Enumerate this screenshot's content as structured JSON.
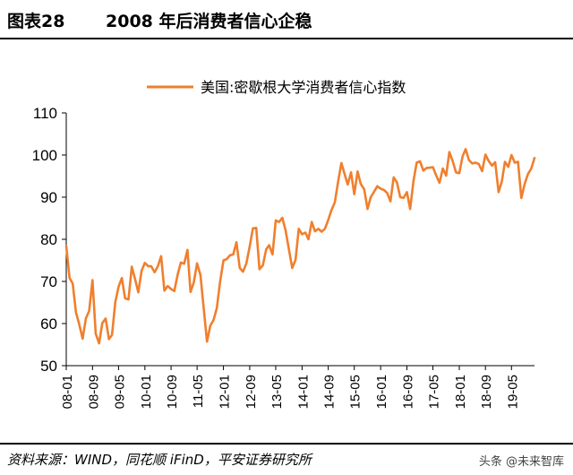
{
  "header": {
    "figure_label": "图表28",
    "title": "2008 年后消费者信心企稳"
  },
  "footer": {
    "source": "资料来源：WIND，同花顺 iFinD，平安证券研究所",
    "watermark": "头条 @未来智库"
  },
  "colors": {
    "series": "#F07F2E",
    "axis": "#000000"
  },
  "chart_data": {
    "type": "line",
    "title": "",
    "xlabel": "",
    "ylabel": "",
    "ylim": [
      50,
      110
    ],
    "yticks": [
      50,
      60,
      70,
      80,
      90,
      100,
      110
    ],
    "xticks": [
      "08-01",
      "08-09",
      "09-05",
      "10-01",
      "10-09",
      "11-05",
      "12-01",
      "12-09",
      "13-05",
      "14-01",
      "14-09",
      "15-05",
      "16-01",
      "16-09",
      "17-05",
      "18-01",
      "18-09",
      "19-05"
    ],
    "grid": false,
    "legend": "top-center",
    "series": [
      {
        "name": "美国:密歇根大学消费者信心指数",
        "x": [
          "2008-01",
          "2008-02",
          "2008-03",
          "2008-04",
          "2008-05",
          "2008-06",
          "2008-07",
          "2008-08",
          "2008-09",
          "2008-10",
          "2008-11",
          "2008-12",
          "2009-01",
          "2009-02",
          "2009-03",
          "2009-04",
          "2009-05",
          "2009-06",
          "2009-07",
          "2009-08",
          "2009-09",
          "2009-10",
          "2009-11",
          "2009-12",
          "2010-01",
          "2010-02",
          "2010-03",
          "2010-04",
          "2010-05",
          "2010-06",
          "2010-07",
          "2010-08",
          "2010-09",
          "2010-10",
          "2010-11",
          "2010-12",
          "2011-01",
          "2011-02",
          "2011-03",
          "2011-04",
          "2011-05",
          "2011-06",
          "2011-07",
          "2011-08",
          "2011-09",
          "2011-10",
          "2011-11",
          "2011-12",
          "2012-01",
          "2012-02",
          "2012-03",
          "2012-04",
          "2012-05",
          "2012-06",
          "2012-07",
          "2012-08",
          "2012-09",
          "2012-10",
          "2012-11",
          "2012-12",
          "2013-01",
          "2013-02",
          "2013-03",
          "2013-04",
          "2013-05",
          "2013-06",
          "2013-07",
          "2013-08",
          "2013-09",
          "2013-10",
          "2013-11",
          "2013-12",
          "2014-01",
          "2014-02",
          "2014-03",
          "2014-04",
          "2014-05",
          "2014-06",
          "2014-07",
          "2014-08",
          "2014-09",
          "2014-10",
          "2014-11",
          "2014-12",
          "2015-01",
          "2015-02",
          "2015-03",
          "2015-04",
          "2015-05",
          "2015-06",
          "2015-07",
          "2015-08",
          "2015-09",
          "2015-10",
          "2015-11",
          "2015-12",
          "2016-01",
          "2016-02",
          "2016-03",
          "2016-04",
          "2016-05",
          "2016-06",
          "2016-07",
          "2016-08",
          "2016-09",
          "2016-10",
          "2016-11",
          "2016-12",
          "2017-01",
          "2017-02",
          "2017-03",
          "2017-04",
          "2017-05",
          "2017-06",
          "2017-07",
          "2017-08",
          "2017-09",
          "2017-10",
          "2017-11",
          "2017-12",
          "2018-01",
          "2018-02",
          "2018-03",
          "2018-04",
          "2018-05",
          "2018-06",
          "2018-07",
          "2018-08",
          "2018-09",
          "2018-10",
          "2018-11",
          "2018-12",
          "2019-01",
          "2019-02",
          "2019-03",
          "2019-04",
          "2019-05",
          "2019-06",
          "2019-07",
          "2019-08",
          "2019-09",
          "2019-10",
          "2019-11",
          "2019-12"
        ],
        "values": [
          78.4,
          70.8,
          69.5,
          62.6,
          59.8,
          56.4,
          61.2,
          63.0,
          70.3,
          57.6,
          55.3,
          60.1,
          61.2,
          56.3,
          57.3,
          65.1,
          68.7,
          70.8,
          66.0,
          65.7,
          73.5,
          70.6,
          67.4,
          72.5,
          74.4,
          73.6,
          73.6,
          72.2,
          73.6,
          76.0,
          67.8,
          68.9,
          68.2,
          67.7,
          71.6,
          74.5,
          74.2,
          77.5,
          67.5,
          69.8,
          74.3,
          71.5,
          63.7,
          55.7,
          59.5,
          60.8,
          63.7,
          69.9,
          75.0,
          75.3,
          76.2,
          76.4,
          79.3,
          73.2,
          72.3,
          74.3,
          78.3,
          82.6,
          82.7,
          72.9,
          73.8,
          77.6,
          78.6,
          76.4,
          84.5,
          84.1,
          85.1,
          82.1,
          77.5,
          73.2,
          75.1,
          82.5,
          81.2,
          81.6,
          80.0,
          84.1,
          81.9,
          82.5,
          81.8,
          82.5,
          84.6,
          86.9,
          88.8,
          93.6,
          98.1,
          95.4,
          93.0,
          95.9,
          90.7,
          96.1,
          93.1,
          91.9,
          87.2,
          90.0,
          91.3,
          92.6,
          92.0,
          91.7,
          91.0,
          89.0,
          94.7,
          93.5,
          90.0,
          89.8,
          91.2,
          87.2,
          93.8,
          98.2,
          98.5,
          96.3,
          96.9,
          97.0,
          97.1,
          95.1,
          93.4,
          96.8,
          95.1,
          100.7,
          98.5,
          95.9,
          95.7,
          99.7,
          101.4,
          98.8,
          98.0,
          98.2,
          97.9,
          96.2,
          100.1,
          98.6,
          97.5,
          98.3,
          91.2,
          93.8,
          98.4,
          97.2,
          100.0,
          98.2,
          98.4,
          89.8,
          93.2,
          95.5,
          96.8,
          99.3
        ]
      }
    ]
  }
}
